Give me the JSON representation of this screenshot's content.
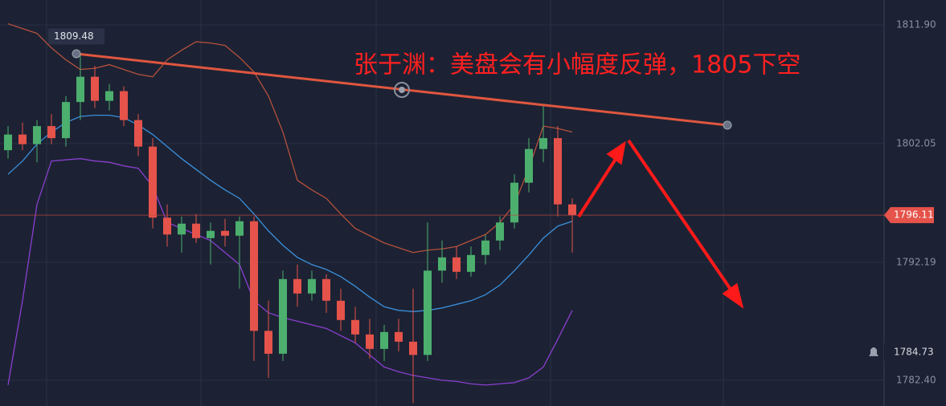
{
  "chart_data": {
    "type": "candlestick",
    "annotation": "张于渊：美盘会有小幅度反弹，1805下空",
    "peak_label": 1809.48,
    "current_price": 1796.11,
    "alert_price": 1784.73,
    "ylim": [
      1780.26,
      1813.97
    ],
    "yticks": [
      {
        "value": 1811.9,
        "label": "1811.90"
      },
      1802.05,
      1792.19,
      {
        "value": 1782.4,
        "label": "1782.40"
      }
    ],
    "grid": true,
    "up_color": "#4caf6e",
    "down_color": "#e5534b",
    "open": [
      1801.5,
      1802.8,
      1802.0,
      1803.5,
      1802.5,
      1805.5,
      1807.6,
      1805.6,
      1806.4,
      1804.0,
      1801.8,
      1795.9,
      1794.5,
      1795.4,
      1794.2,
      1794.8,
      1794.4,
      1795.6,
      1786.5,
      1784.6,
      1790.8,
      1789.6,
      1790.8,
      1789.0,
      1787.4,
      1786.2,
      1785.0,
      1786.4,
      1785.6,
      1784.5,
      1791.5,
      1792.6,
      1791.4,
      1792.8,
      1794.0,
      1795.5,
      1798.8,
      1801.6,
      1802.5,
      1797.0
    ],
    "high": [
      1803.5,
      1803.8,
      1804.0,
      1804.5,
      1806.0,
      1809.48,
      1808.5,
      1807.0,
      1806.8,
      1804.5,
      1802.5,
      1797.0,
      1796.0,
      1796.2,
      1795.5,
      1795.8,
      1796.0,
      1796.0,
      1789.0,
      1791.5,
      1792.0,
      1791.5,
      1791.2,
      1790.0,
      1788.5,
      1787.5,
      1787.0,
      1787.5,
      1790.0,
      1795.5,
      1794.0,
      1793.5,
      1793.5,
      1794.5,
      1796.0,
      1799.5,
      1802.5,
      1805.3,
      1803.5,
      1797.5
    ],
    "low": [
      1800.8,
      1801.5,
      1800.5,
      1802.0,
      1801.8,
      1804.0,
      1805.0,
      1804.8,
      1803.5,
      1801.0,
      1795.0,
      1793.5,
      1793.0,
      1793.8,
      1792.0,
      1793.5,
      1790.0,
      1784.0,
      1782.6,
      1784.0,
      1788.5,
      1789.0,
      1788.0,
      1786.5,
      1785.5,
      1784.2,
      1784.0,
      1784.8,
      1780.5,
      1784.0,
      1790.5,
      1790.8,
      1791.0,
      1792.0,
      1793.2,
      1795.0,
      1798.0,
      1800.5,
      1796.0,
      1793.0
    ],
    "close": [
      1802.8,
      1802.0,
      1803.5,
      1802.5,
      1805.5,
      1807.6,
      1805.6,
      1806.4,
      1804.0,
      1801.8,
      1795.9,
      1794.5,
      1795.4,
      1794.2,
      1794.8,
      1794.4,
      1795.6,
      1786.5,
      1784.6,
      1790.8,
      1789.6,
      1790.8,
      1789.0,
      1787.4,
      1786.2,
      1785.0,
      1786.4,
      1785.6,
      1784.5,
      1791.5,
      1792.6,
      1791.4,
      1792.8,
      1794.0,
      1795.5,
      1798.8,
      1801.6,
      1802.5,
      1797.0,
      1796.11
    ],
    "overlays": [
      {
        "color": "#b5503d",
        "values": [
          1812.0,
          1811.6,
          1811.2,
          1810.0,
          1809.0,
          1808.2,
          1808.3,
          1808.6,
          1808.2,
          1807.8,
          1807.6,
          1809.0,
          1809.8,
          1810.5,
          1810.4,
          1810.2,
          1809.2,
          1808.0,
          1806.0,
          1803.0,
          1799.0,
          1798.2,
          1797.5,
          1796.2,
          1795.0,
          1794.4,
          1793.8,
          1793.4,
          1793.0,
          1793.2,
          1793.3,
          1793.5,
          1794.0,
          1794.5,
          1795.5,
          1797.0,
          1800.0,
          1803.5,
          1803.3,
          1803.0
        ]
      },
      {
        "color": "#8a3fd0",
        "values": [
          1782.0,
          1789.0,
          1797.0,
          1800.6,
          1800.7,
          1800.8,
          1800.6,
          1800.5,
          1800.2,
          1800.0,
          1798.5,
          1795.5,
          1795.0,
          1794.5,
          1794.0,
          1793.0,
          1792.0,
          1789.0,
          1788.0,
          1787.6,
          1787.3,
          1787.0,
          1786.7,
          1786.1,
          1785.5,
          1784.5,
          1783.5,
          1783.1,
          1782.8,
          1782.6,
          1782.4,
          1782.3,
          1782.1,
          1782.0,
          1782.1,
          1782.2,
          1782.6,
          1783.5,
          1785.8,
          1788.2
        ]
      },
      {
        "color": "#3a8fdc",
        "values": [
          1799.5,
          1800.6,
          1802.0,
          1803.0,
          1803.8,
          1804.3,
          1804.4,
          1804.4,
          1804.2,
          1803.6,
          1802.8,
          1801.8,
          1800.8,
          1799.9,
          1799.0,
          1798.2,
          1797.5,
          1796.2,
          1794.8,
          1793.6,
          1792.6,
          1792.0,
          1791.6,
          1791.0,
          1790.2,
          1789.3,
          1788.5,
          1788.2,
          1788.1,
          1788.2,
          1788.4,
          1788.7,
          1789.0,
          1789.5,
          1790.3,
          1791.5,
          1792.8,
          1794.2,
          1795.2,
          1795.6
        ]
      }
    ]
  }
}
